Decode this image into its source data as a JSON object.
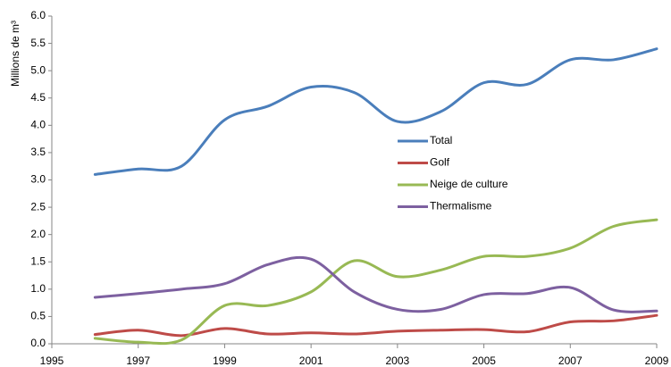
{
  "chart_data": {
    "type": "line",
    "y_label": "Millions de m³",
    "x": [
      1996,
      1997,
      1998,
      1999,
      2000,
      2001,
      2002,
      2003,
      2004,
      2005,
      2006,
      2007,
      2008,
      2009
    ],
    "series": [
      {
        "name": "Total",
        "color": "#4a7ebb",
        "values": [
          3.1,
          3.2,
          3.25,
          4.1,
          4.35,
          4.7,
          4.6,
          4.07,
          4.25,
          4.78,
          4.75,
          5.2,
          5.2,
          5.4
        ]
      },
      {
        "name": "Golf",
        "color": "#be4b48",
        "values": [
          0.17,
          0.25,
          0.15,
          0.28,
          0.18,
          0.2,
          0.18,
          0.23,
          0.25,
          0.26,
          0.22,
          0.4,
          0.42,
          0.52
        ]
      },
      {
        "name": "Neige de culture",
        "color": "#98b954",
        "values": [
          0.1,
          0.03,
          0.07,
          0.7,
          0.7,
          0.95,
          1.52,
          1.23,
          1.35,
          1.6,
          1.6,
          1.75,
          2.15,
          2.27
        ]
      },
      {
        "name": "Thermalisme",
        "color": "#7d60a0",
        "values": [
          0.85,
          0.92,
          1.0,
          1.1,
          1.45,
          1.55,
          0.95,
          0.63,
          0.63,
          0.9,
          0.92,
          1.03,
          0.62,
          0.6
        ]
      }
    ],
    "xlim": [
      1995,
      2009
    ],
    "xticks": [
      1995,
      1997,
      1999,
      2001,
      2003,
      2005,
      2007,
      2009
    ],
    "ylim": [
      0,
      6
    ],
    "yticks": [
      {
        "value": 0,
        "label": "0.0"
      },
      0.5,
      {
        "value": 1,
        "label": "1.0"
      },
      1.5,
      {
        "value": 2,
        "label": "2.0"
      },
      2.5,
      {
        "value": 3,
        "label": "3.0"
      },
      3.5,
      {
        "value": 4,
        "label": "4.0"
      },
      4.5,
      {
        "value": 5,
        "label": "5.0"
      },
      5.5,
      {
        "value": 6,
        "label": "6.0"
      }
    ],
    "grid": false,
    "legend": "center"
  }
}
